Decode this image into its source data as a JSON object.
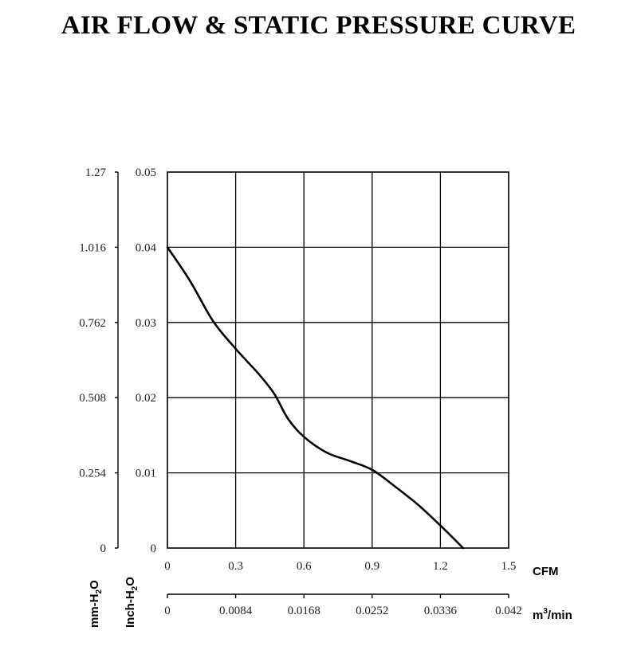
{
  "title": "AIR FLOW & STATIC PRESSURE CURVE",
  "chart_data": {
    "type": "line",
    "title": "AIR FLOW & STATIC PRESSURE CURVE",
    "x_cfm": {
      "label": "CFM",
      "range": [
        0,
        1.5
      ],
      "ticks": [
        "0",
        "0.3",
        "0.6",
        "0.9",
        "1.2",
        "1.5"
      ]
    },
    "x_m3min": {
      "label_base": "m",
      "label_sup": "3",
      "label_tail": "/min",
      "ticks": [
        "0",
        "0.0084",
        "0.0168",
        "0.0252",
        "0.0336",
        "0.042"
      ]
    },
    "y_inch": {
      "label_base": "Inch-H",
      "label_sub": "2",
      "label_tail": "O",
      "range": [
        0,
        0.05
      ],
      "ticks": [
        "0",
        "0.01",
        "0.02",
        "0.03",
        "0.04",
        "0.05"
      ]
    },
    "y_mm": {
      "label_base": "mm-H",
      "label_sub": "2",
      "label_tail": "O",
      "ticks": [
        "0",
        "0.254",
        "0.508",
        "0.762",
        "1.016",
        "1.27"
      ]
    },
    "grid": true,
    "series": [
      {
        "name": "Static Pressure",
        "x": [
          0,
          0.1,
          0.2,
          0.3,
          0.4,
          0.47,
          0.53,
          0.6,
          0.7,
          0.8,
          0.9,
          1.0,
          1.1,
          1.2,
          1.3
        ],
        "y": [
          0.04,
          0.0355,
          0.0302,
          0.0265,
          0.0232,
          0.0205,
          0.0172,
          0.0148,
          0.0127,
          0.0116,
          0.0104,
          0.0082,
          0.0058,
          0.003,
          0.0
        ]
      }
    ]
  }
}
